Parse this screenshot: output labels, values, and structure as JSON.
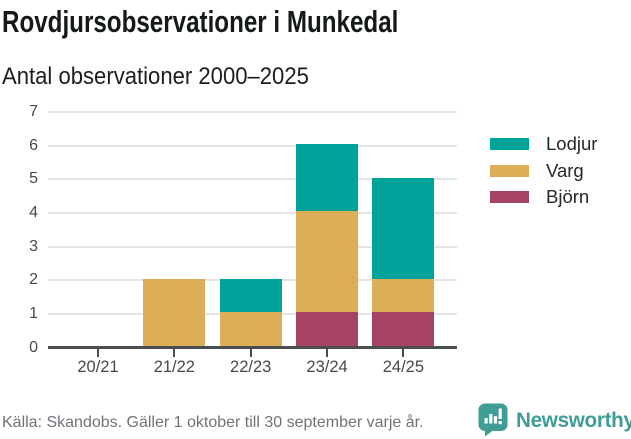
{
  "page": {
    "title": "Rovdjursobservationer i Munkedal",
    "subtitle": "Antal observationer 2000–2025",
    "source_note": "Källa: Skandobs. Gäller 1 oktober till 30 september varje år.",
    "brand": "Newsworthy"
  },
  "colors": {
    "lodjur": "#00a399",
    "varg": "#dbae57",
    "bjorn": "#a64364",
    "brand_teal": "#3f9d96",
    "grid": "#e4e4e4",
    "axis": "#4a4e50",
    "tick_label": "#45494c",
    "source_text": "#6f7378"
  },
  "legend": {
    "position": "right",
    "items": [
      {
        "label": "Lodjur",
        "color": "#00a399"
      },
      {
        "label": "Varg",
        "color": "#dbae57"
      },
      {
        "label": "Björn",
        "color": "#a64364"
      }
    ]
  },
  "chart_data": {
    "type": "bar",
    "stacked": true,
    "title": "Rovdjursobservationer i Munkedal",
    "subtitle": "Antal observationer 2000–2025",
    "categories": [
      "20/21",
      "21/22",
      "22/23",
      "23/24",
      "24/25"
    ],
    "series": [
      {
        "name": "Björn",
        "color": "#a64364",
        "values": [
          0,
          0,
          0,
          1,
          1
        ]
      },
      {
        "name": "Varg",
        "color": "#dbae57",
        "values": [
          0,
          2,
          1,
          3,
          1
        ]
      },
      {
        "name": "Lodjur",
        "color": "#00a399",
        "values": [
          0,
          0,
          1,
          2,
          3
        ]
      }
    ],
    "stack_order": "bottom-to-top",
    "totals": [
      0,
      2,
      2,
      6,
      5
    ],
    "xlabel": "",
    "ylabel": "",
    "ylim": [
      0,
      7
    ],
    "yticks": [
      0,
      1,
      2,
      3,
      4,
      5,
      6,
      7
    ],
    "grid": true,
    "legend_position": "right"
  }
}
